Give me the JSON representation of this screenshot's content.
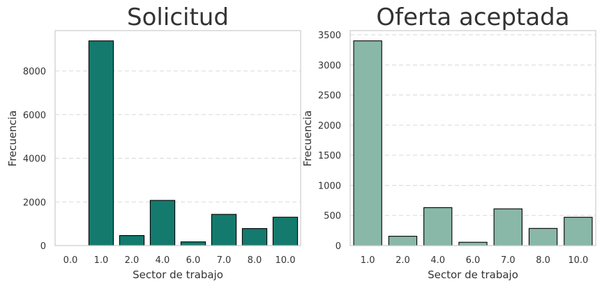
{
  "chart_data": [
    {
      "type": "bar",
      "title": "Solicitud",
      "xlabel": "Sector de trabajo",
      "ylabel": "Frecuencia",
      "categories": [
        "0.0",
        "1.0",
        "2.0",
        "4.0",
        "6.0",
        "7.0",
        "8.0",
        "10.0"
      ],
      "values": [
        0,
        9380,
        460,
        2070,
        170,
        1430,
        780,
        1300
      ],
      "ylim": [
        0,
        9850
      ],
      "yticks": [
        0,
        2000,
        4000,
        6000,
        8000
      ],
      "grid": true,
      "bar_color": "#147a6e"
    },
    {
      "type": "bar",
      "title": "Oferta aceptada",
      "xlabel": "Sector de trabajo",
      "ylabel": "Frecuencia",
      "categories": [
        "1.0",
        "2.0",
        "4.0",
        "6.0",
        "7.0",
        "8.0",
        "10.0"
      ],
      "values": [
        3400,
        155,
        630,
        55,
        610,
        285,
        470
      ],
      "ylim": [
        0,
        3570
      ],
      "yticks": [
        0,
        500,
        1000,
        1500,
        2000,
        2500,
        3000,
        3500
      ],
      "grid": true,
      "bar_color": "#89b7a8"
    }
  ]
}
